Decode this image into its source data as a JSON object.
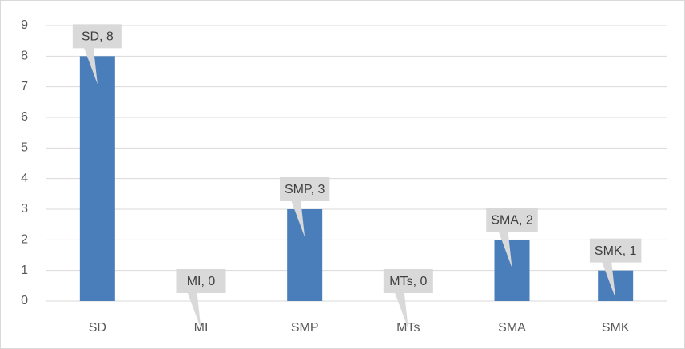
{
  "chart_data": {
    "type": "bar",
    "categories": [
      "SD",
      "MI",
      "SMP",
      "MTs",
      "SMA",
      "SMK"
    ],
    "values": [
      8,
      0,
      3,
      0,
      2,
      1
    ],
    "value_labels": [
      "SD, 8",
      "MI, 0",
      "SMP, 3",
      "MTs, 0",
      "SMA, 2",
      "SMK, 1"
    ],
    "color": "#4a7ebb",
    "ylim": [
      0,
      9
    ],
    "yticks": [
      0,
      1,
      2,
      3,
      4,
      5,
      6,
      7,
      8,
      9
    ],
    "grid": true
  }
}
